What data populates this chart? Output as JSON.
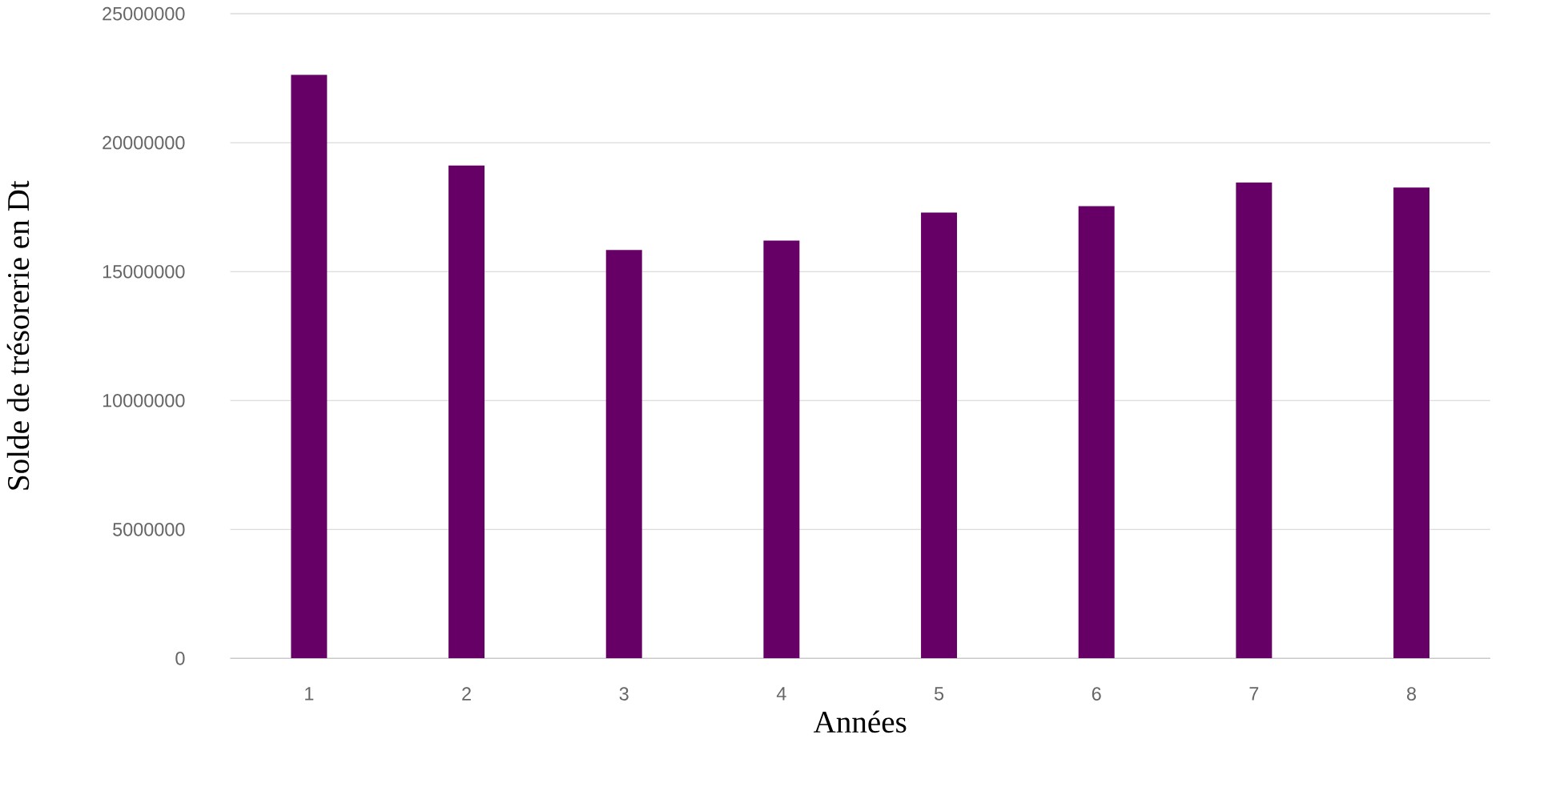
{
  "chart_data": {
    "type": "bar",
    "xlabel": "Années",
    "ylabel": "Solde de trésorerie en Dt",
    "categories": [
      "1",
      "2",
      "3",
      "4",
      "5",
      "6",
      "7",
      "8"
    ],
    "values": [
      22630000,
      19110000,
      15840000,
      16200000,
      17290000,
      17540000,
      18450000,
      18260000
    ],
    "color": "#660066",
    "ylim": [
      0,
      25000000
    ],
    "yticks": [
      0,
      5000000,
      10000000,
      15000000,
      20000000,
      25000000
    ],
    "grid": "y"
  }
}
